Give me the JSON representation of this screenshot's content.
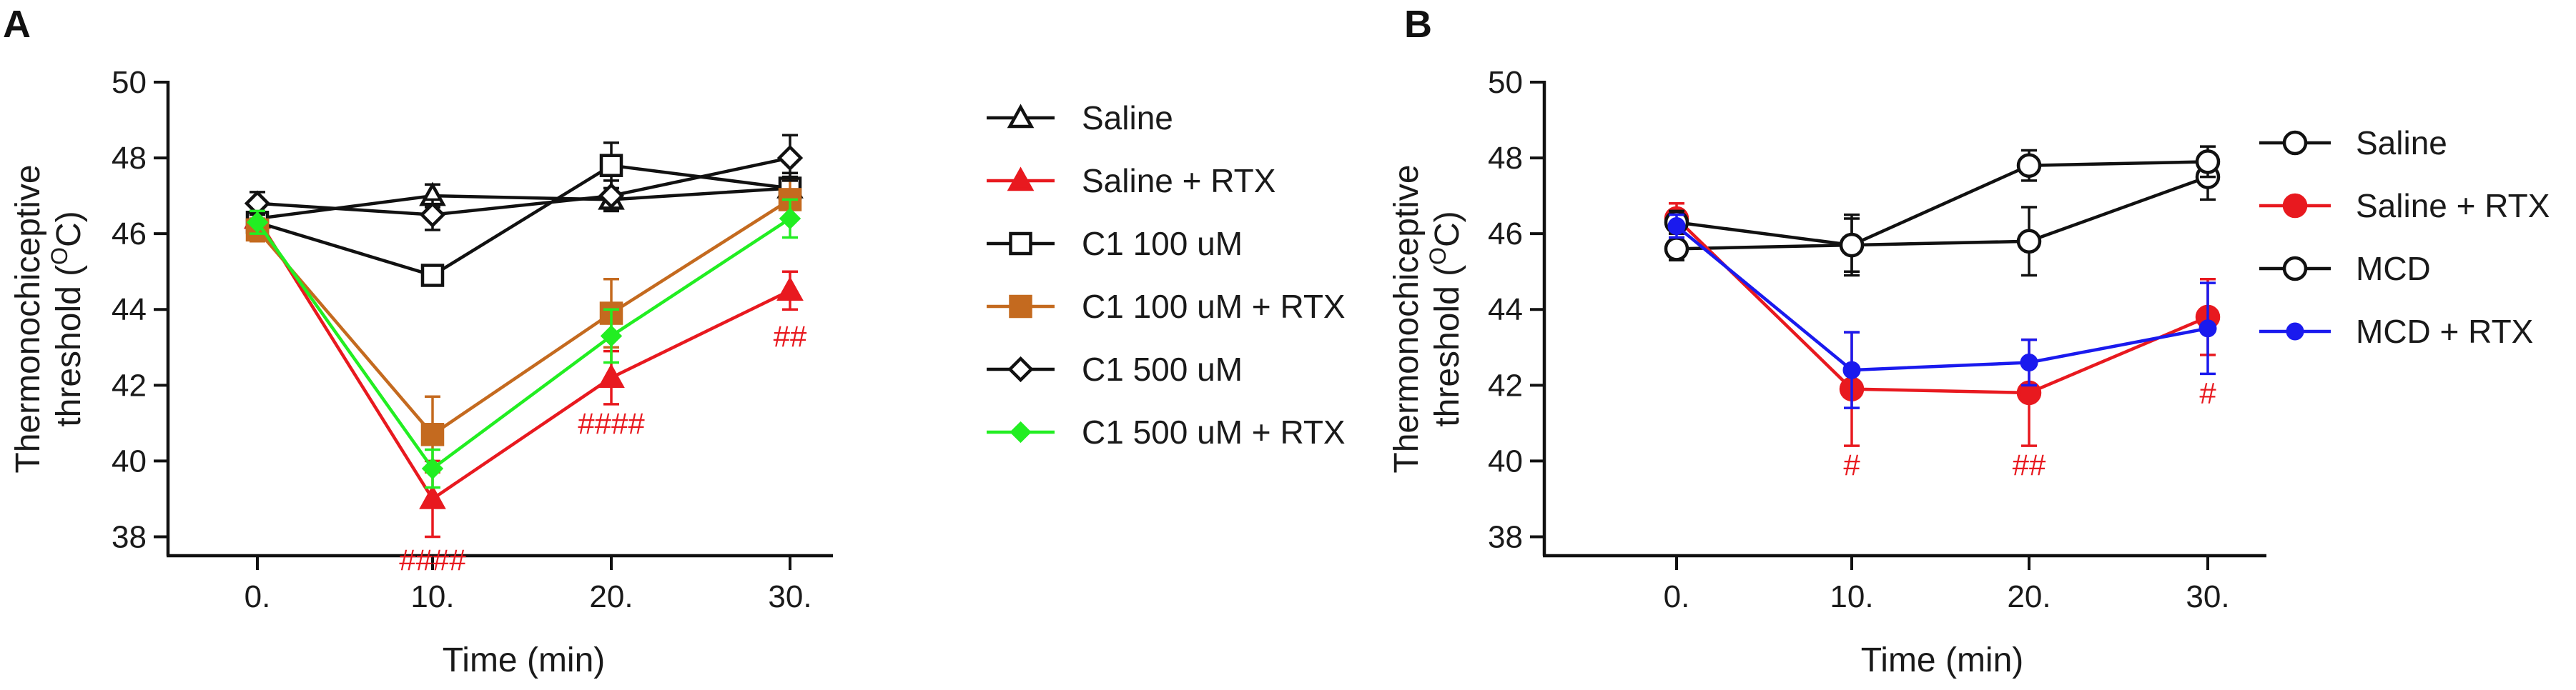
{
  "chart_data": [
    {
      "panel": "A",
      "type": "line",
      "xlabel": "Time (min)",
      "ylabel_line1": "Thermonochiceptive",
      "ylabel_line2_pre": "threshold (",
      "ylabel_sup": "O",
      "ylabel_line2_post": "C)",
      "ylim": [
        37.5,
        50
      ],
      "yticks": [
        "38",
        "40",
        "42",
        "44",
        "46",
        "48",
        "50"
      ],
      "x": [
        0,
        10,
        20,
        30
      ],
      "xticks": [
        "0.",
        "10.",
        "20.",
        "30."
      ],
      "legend_position": "right",
      "series": [
        {
          "name": "Saline",
          "color": "#111111",
          "marker": "triangle-open",
          "values": [
            46.4,
            47.0,
            46.9,
            47.2
          ],
          "errors": [
            0.3,
            0.3,
            0.3,
            0.3
          ]
        },
        {
          "name": "Saline + RTX",
          "color": "#e8191f",
          "marker": "triangle-filled",
          "values": [
            46.4,
            39.0,
            42.2,
            44.5
          ],
          "errors": [
            0.3,
            1.0,
            0.7,
            0.5
          ]
        },
        {
          "name": "C1 100 uM",
          "color": "#111111",
          "marker": "square-open",
          "values": [
            46.3,
            44.9,
            47.8,
            47.2
          ],
          "errors": [
            0.3,
            0.2,
            0.6,
            0.4
          ]
        },
        {
          "name": "C1 100 uM + RTX",
          "color": "#c46a1f",
          "marker": "square-filled",
          "values": [
            46.1,
            40.7,
            43.9,
            46.9
          ],
          "errors": [
            0.3,
            1.0,
            0.9,
            0.5
          ]
        },
        {
          "name": "C1 500 uM",
          "color": "#111111",
          "marker": "diamond-open",
          "values": [
            46.8,
            46.5,
            47.0,
            48.0
          ],
          "errors": [
            0.3,
            0.4,
            0.4,
            0.6
          ]
        },
        {
          "name": "C1 500 uM + RTX",
          "color": "#22ee22",
          "marker": "diamond-filled",
          "values": [
            46.3,
            39.8,
            43.3,
            46.4
          ],
          "errors": [
            0.3,
            0.5,
            0.7,
            0.5
          ]
        }
      ],
      "annotations": [
        {
          "text": "####",
          "x": 10,
          "y": 37.4,
          "color": "#e8191f"
        },
        {
          "text": "####",
          "x": 20,
          "y": 41.0,
          "color": "#e8191f"
        },
        {
          "text": "##",
          "x": 30,
          "y": 43.3,
          "color": "#e8191f"
        }
      ]
    },
    {
      "panel": "B",
      "type": "line",
      "xlabel": "Time (min)",
      "ylabel_line1": "Thermonochiceptive",
      "ylabel_line2_pre": "threshold (",
      "ylabel_sup": "O",
      "ylabel_line2_post": "C)",
      "ylim": [
        37.5,
        50
      ],
      "yticks": [
        "38",
        "40",
        "42",
        "44",
        "46",
        "48",
        "50"
      ],
      "x": [
        0,
        10,
        20,
        30
      ],
      "xticks": [
        "0.",
        "10.",
        "20.",
        "30."
      ],
      "legend_position": "right",
      "series": [
        {
          "name": "Saline",
          "color": "#111111",
          "marker": "circle-open",
          "values": [
            45.6,
            45.7,
            45.8,
            47.5
          ],
          "errors": [
            0.3,
            0.7,
            0.9,
            0.6
          ]
        },
        {
          "name": "Saline + RTX",
          "color": "#e8191f",
          "marker": "circle-filled",
          "values": [
            46.4,
            41.9,
            41.8,
            43.8
          ],
          "errors": [
            0.4,
            1.5,
            1.4,
            1.0
          ]
        },
        {
          "name": "MCD",
          "color": "#111111",
          "marker": "circle-open",
          "values": [
            46.3,
            45.7,
            47.8,
            47.9
          ],
          "errors": [
            0.3,
            0.8,
            0.4,
            0.4
          ]
        },
        {
          "name": "MCD + RTX",
          "color": "#1a1aee",
          "marker": "circle-filled-small",
          "values": [
            46.2,
            42.4,
            42.6,
            43.5
          ],
          "errors": [
            0.3,
            1.0,
            0.6,
            1.2
          ]
        }
      ],
      "annotations": [
        {
          "text": "#",
          "x": 10,
          "y": 39.9,
          "color": "#e8191f"
        },
        {
          "text": "##",
          "x": 20,
          "y": 39.9,
          "color": "#e8191f"
        },
        {
          "text": "#",
          "x": 30,
          "y": 41.8,
          "color": "#e8191f"
        }
      ]
    }
  ]
}
